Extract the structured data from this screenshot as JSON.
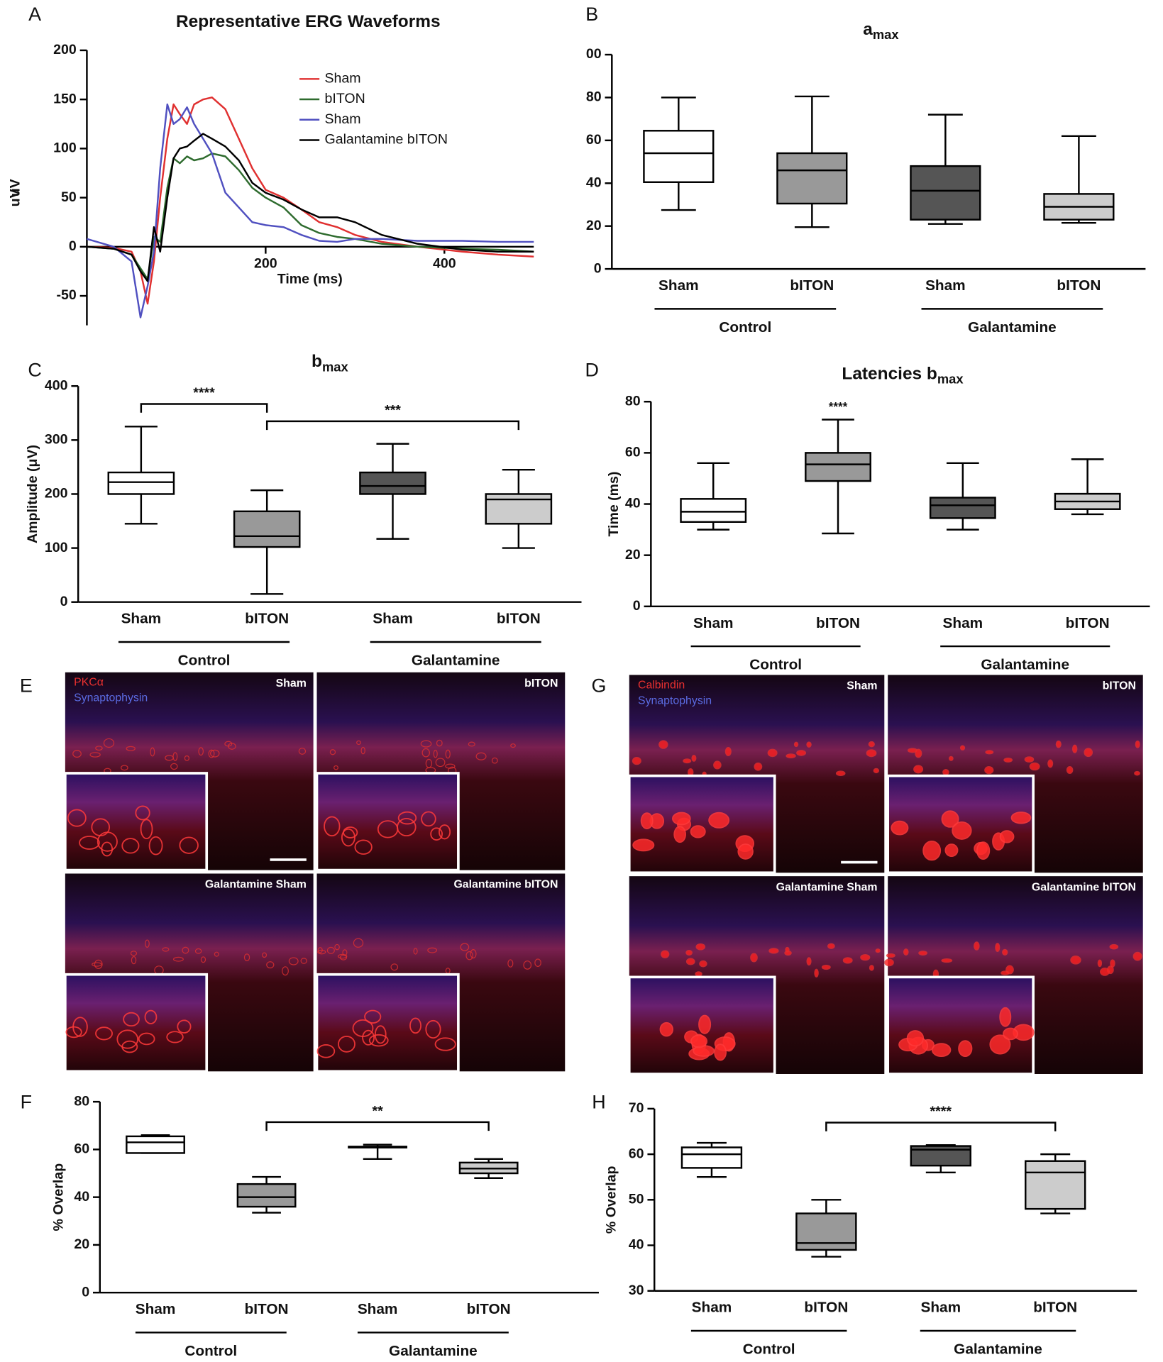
{
  "panel_labels": [
    "A",
    "B",
    "C",
    "D",
    "E",
    "F",
    "G",
    "H"
  ],
  "chart_data": [
    {
      "type": "line",
      "title": "Representative ERG Waveforms",
      "xlabel": "Time (ms)",
      "ylabel": "uV",
      "x": [
        0,
        30,
        50,
        60,
        68,
        75,
        82,
        90,
        97,
        104,
        112,
        120,
        130,
        140,
        155,
        170,
        185,
        200,
        220,
        240,
        260,
        280,
        300,
        330,
        370,
        420,
        460,
        500
      ],
      "xlim": [
        0,
        500
      ],
      "xticks": [
        200,
        400
      ],
      "ylim": [
        -80,
        200
      ],
      "yticks": [
        -50,
        0,
        50,
        100,
        150,
        200
      ],
      "series": [
        {
          "name": "Sham",
          "color": "#e03030",
          "values": [
            0,
            -1,
            -5,
            -25,
            -58,
            -15,
            50,
            110,
            145,
            135,
            125,
            145,
            150,
            152,
            140,
            110,
            80,
            58,
            50,
            38,
            25,
            20,
            12,
            5,
            0,
            -5,
            -8,
            -10
          ]
        },
        {
          "name": "bITON",
          "color": "#2e6b2e",
          "values": [
            0,
            -2,
            -8,
            -22,
            -33,
            10,
            5,
            60,
            90,
            85,
            92,
            88,
            90,
            95,
            92,
            78,
            60,
            50,
            40,
            22,
            14,
            10,
            8,
            3,
            0,
            -2,
            -3,
            -5
          ]
        },
        {
          "name": "Sham",
          "color": "#5050c0",
          "values": [
            8,
            0,
            -15,
            -72,
            -40,
            -5,
            80,
            145,
            125,
            130,
            142,
            125,
            110,
            95,
            55,
            40,
            25,
            22,
            20,
            12,
            6,
            5,
            8,
            8,
            6,
            6,
            5,
            5
          ]
        },
        {
          "name": "Galantamine bITON",
          "color": "#000000",
          "values": [
            0,
            -2,
            -8,
            -25,
            -35,
            20,
            -5,
            50,
            90,
            100,
            102,
            108,
            115,
            110,
            102,
            88,
            65,
            55,
            48,
            38,
            30,
            30,
            25,
            12,
            3,
            -3,
            -5,
            -5
          ]
        }
      ]
    },
    {
      "type": "box",
      "title": "a",
      "title_sub": "max",
      "categories": [
        "Sham",
        "bITON",
        "Sham",
        "bITON"
      ],
      "groups": [
        {
          "name": "Control",
          "size": 2
        },
        {
          "name": "Galantamine",
          "size": 2
        }
      ],
      "min": [
        27.5,
        19.5,
        21,
        21.5
      ],
      "q1": [
        40.5,
        30.5,
        23,
        23
      ],
      "median": [
        54,
        46,
        36.5,
        29
      ],
      "q3": [
        64.5,
        54,
        48,
        35
      ],
      "max": [
        80,
        80.5,
        72,
        62
      ],
      "colors": [
        "#ffffff",
        "#999999",
        "#555555",
        "#cccccc"
      ],
      "ylim": [
        0,
        100
      ],
      "yticks": [
        0,
        20,
        40,
        60,
        80,
        {
          "value": 100,
          "label": "00"
        }
      ],
      "annotations": []
    },
    {
      "type": "box",
      "title": "b",
      "title_sub": "max",
      "ylabel": "Amplitude (μV)",
      "categories": [
        "Sham",
        "bITON",
        "Sham",
        "bITON"
      ],
      "groups": [
        {
          "name": "Control",
          "size": 2
        },
        {
          "name": "Galantamine",
          "size": 2
        }
      ],
      "min": [
        145,
        15,
        117,
        100
      ],
      "q1": [
        200,
        102,
        200,
        145
      ],
      "median": [
        222,
        122,
        215,
        190
      ],
      "q3": [
        240,
        168,
        240,
        200
      ],
      "max": [
        325,
        207,
        293,
        245
      ],
      "colors": [
        "#ffffff",
        "#999999",
        "#555555",
        "#cccccc"
      ],
      "ylim": [
        0,
        400
      ],
      "yticks": [
        0,
        100,
        200,
        300,
        400
      ],
      "annotations": [
        {
          "text": "****",
          "from": 0,
          "to": 1
        },
        {
          "text": "***",
          "from": 1,
          "to": 3
        }
      ]
    },
    {
      "type": "box",
      "title": "Latencies b",
      "title_sub": "max",
      "ylabel": "Time (ms)",
      "categories": [
        "Sham",
        "bITON",
        "Sham",
        "bITON"
      ],
      "groups": [
        {
          "name": "Control",
          "size": 2
        },
        {
          "name": "Galantamine",
          "size": 2
        }
      ],
      "min": [
        30,
        28.5,
        30,
        36
      ],
      "q1": [
        33,
        49,
        34.5,
        38
      ],
      "median": [
        37,
        55.5,
        39.5,
        41
      ],
      "q3": [
        42,
        60,
        42.5,
        44
      ],
      "max": [
        56,
        73,
        56,
        57.5
      ],
      "colors": [
        "#ffffff",
        "#999999",
        "#555555",
        "#cccccc"
      ],
      "ylim": [
        0,
        80
      ],
      "yticks": [
        0,
        20,
        40,
        60,
        80
      ],
      "annotations": [
        {
          "text": "****",
          "from": 1,
          "to": 1
        }
      ]
    },
    {
      "type": "box",
      "ylabel": "% Overlap",
      "categories": [
        "Sham",
        "bITON",
        "Sham",
        "bITON"
      ],
      "groups": [
        {
          "name": "Control",
          "size": 2
        },
        {
          "name": "Galantamine",
          "size": 2
        }
      ],
      "min": [
        58.5,
        33.5,
        56,
        48
      ],
      "q1": [
        58.5,
        36,
        60.8,
        50
      ],
      "median": [
        63,
        40,
        61,
        52
      ],
      "q3": [
        65.5,
        45.5,
        61.2,
        54.5
      ],
      "max": [
        66,
        48.5,
        62,
        56
      ],
      "colors": [
        "#ffffff",
        "#999999",
        "#555555",
        "#cccccc"
      ],
      "ylim": [
        0,
        80
      ],
      "yticks": [
        0,
        20,
        40,
        60,
        80
      ],
      "annotations": [
        {
          "text": "**",
          "from": 1,
          "to": 3
        }
      ]
    },
    {
      "type": "box",
      "ylabel": "% Overlap",
      "categories": [
        "Sham",
        "bITON",
        "Sham",
        "bITON"
      ],
      "groups": [
        {
          "name": "Control",
          "size": 2
        },
        {
          "name": "Galantamine",
          "size": 2
        }
      ],
      "min": [
        55,
        37.5,
        56,
        47
      ],
      "q1": [
        57,
        39,
        57.5,
        48
      ],
      "median": [
        60,
        40.5,
        61,
        56
      ],
      "q3": [
        61.5,
        47,
        61.8,
        58.5
      ],
      "max": [
        62.5,
        50,
        62,
        60
      ],
      "colors": [
        "#ffffff",
        "#999999",
        "#555555",
        "#cccccc"
      ],
      "ylim": [
        30,
        70
      ],
      "yticks": [
        30,
        40,
        50,
        60,
        70
      ],
      "annotations": [
        {
          "text": "****",
          "from": 1,
          "to": 3
        }
      ]
    }
  ],
  "images": [
    {
      "legend": [
        {
          "text": "PKCα",
          "color": "#e83030"
        },
        {
          "text": "Synaptophysin",
          "color": "#5a6ae0"
        }
      ],
      "labels": [
        "Sham",
        "bITON",
        "Galantamine Sham",
        "Galantamine bITON"
      ]
    },
    {
      "legend": [
        {
          "text": "Calbindin",
          "color": "#e83030"
        },
        {
          "text": "Synaptophysin",
          "color": "#5a6ae0"
        }
      ],
      "labels": [
        "Sham",
        "bITON",
        "Galantamine Sham",
        "Galantamine bITON"
      ]
    }
  ]
}
